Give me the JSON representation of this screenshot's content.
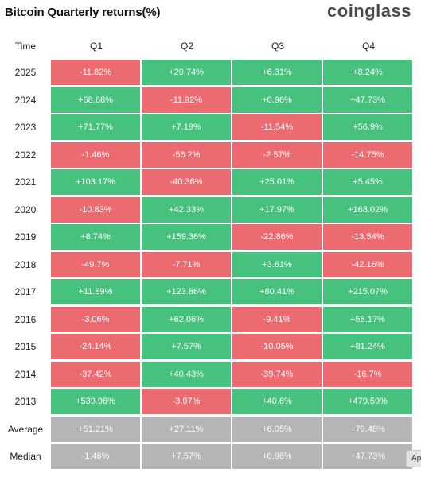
{
  "header": {
    "title": "Bitcoin Quarterly returns(%)",
    "brand": "coinglass"
  },
  "chart_data": {
    "type": "table",
    "title": "Bitcoin Quarterly returns(%)",
    "columns": [
      "Time",
      "Q1",
      "Q2",
      "Q3",
      "Q4"
    ],
    "rows": [
      {
        "label": "2025",
        "values": [
          "-11.82%",
          "+29.74%",
          "+6.31%",
          "+8.24%"
        ],
        "signs": [
          "neg",
          "pos",
          "pos",
          "pos"
        ]
      },
      {
        "label": "2024",
        "values": [
          "+68.68%",
          "-11.92%",
          "+0.96%",
          "+47.73%"
        ],
        "signs": [
          "pos",
          "neg",
          "pos",
          "pos"
        ]
      },
      {
        "label": "2023",
        "values": [
          "+71.77%",
          "+7.19%",
          "-11.54%",
          "+56.9%"
        ],
        "signs": [
          "pos",
          "pos",
          "neg",
          "pos"
        ]
      },
      {
        "label": "2022",
        "values": [
          "-1.46%",
          "-56.2%",
          "-2.57%",
          "-14.75%"
        ],
        "signs": [
          "neg",
          "neg",
          "neg",
          "neg"
        ]
      },
      {
        "label": "2021",
        "values": [
          "+103.17%",
          "-40.36%",
          "+25.01%",
          "+5.45%"
        ],
        "signs": [
          "pos",
          "neg",
          "pos",
          "pos"
        ]
      },
      {
        "label": "2020",
        "values": [
          "-10.83%",
          "+42.33%",
          "+17.97%",
          "+168.02%"
        ],
        "signs": [
          "neg",
          "pos",
          "pos",
          "pos"
        ]
      },
      {
        "label": "2019",
        "values": [
          "+8.74%",
          "+159.36%",
          "-22.86%",
          "-13.54%"
        ],
        "signs": [
          "pos",
          "pos",
          "neg",
          "neg"
        ]
      },
      {
        "label": "2018",
        "values": [
          "-49.7%",
          "-7.71%",
          "+3.61%",
          "-42.16%"
        ],
        "signs": [
          "neg",
          "neg",
          "pos",
          "neg"
        ]
      },
      {
        "label": "2017",
        "values": [
          "+11.89%",
          "+123.86%",
          "+80.41%",
          "+215.07%"
        ],
        "signs": [
          "pos",
          "pos",
          "pos",
          "pos"
        ]
      },
      {
        "label": "2016",
        "values": [
          "-3.06%",
          "+62.06%",
          "-9.41%",
          "+58.17%"
        ],
        "signs": [
          "neg",
          "pos",
          "neg",
          "pos"
        ]
      },
      {
        "label": "2015",
        "values": [
          "-24.14%",
          "+7.57%",
          "-10.05%",
          "+81.24%"
        ],
        "signs": [
          "neg",
          "pos",
          "neg",
          "pos"
        ]
      },
      {
        "label": "2014",
        "values": [
          "-37.42%",
          "+40.43%",
          "-39.74%",
          "-16.7%"
        ],
        "signs": [
          "neg",
          "pos",
          "neg",
          "neg"
        ]
      },
      {
        "label": "2013",
        "values": [
          "+539.96%",
          "-3.97%",
          "+40.6%",
          "+479.59%"
        ],
        "signs": [
          "pos",
          "neg",
          "pos",
          "pos"
        ]
      },
      {
        "label": "Average",
        "values": [
          "+51.21%",
          "+27.11%",
          "+6.05%",
          "+79.48%"
        ],
        "signs": [
          "sum",
          "sum",
          "sum",
          "sum"
        ]
      },
      {
        "label": "Median",
        "values": [
          "-1.46%",
          "+7.57%",
          "+0.96%",
          "+47.73%"
        ],
        "signs": [
          "sum",
          "sum",
          "sum",
          "sum"
        ]
      }
    ],
    "colors": {
      "positive": "#46c27e",
      "negative": "#eb6b70",
      "summary": "#b5b5b5"
    }
  },
  "tooltip": {
    "text": "Ap"
  }
}
